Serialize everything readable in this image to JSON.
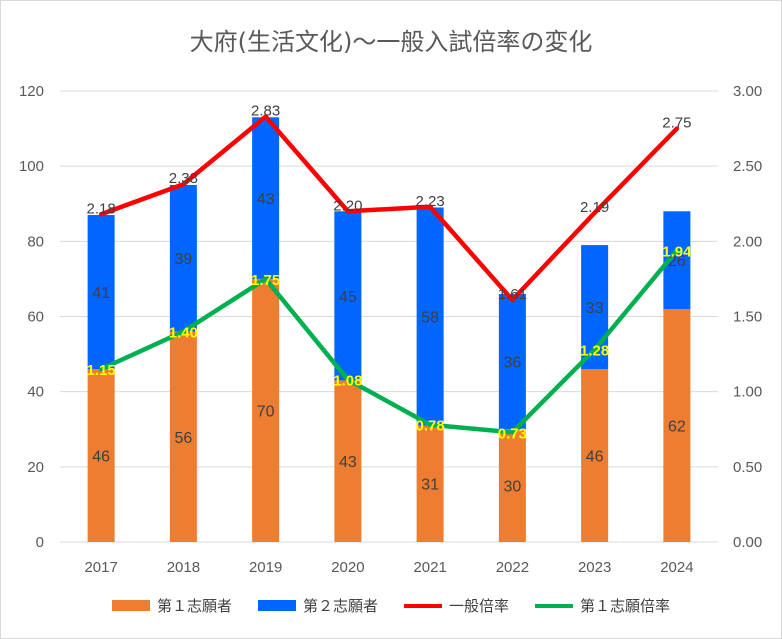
{
  "chart_data": {
    "type": "bar",
    "title": "大府(生活文化)～一般入試倍率の変化",
    "categories": [
      "2017",
      "2018",
      "2019",
      "2020",
      "2021",
      "2022",
      "2023",
      "2024"
    ],
    "left_axis": {
      "ylim": [
        0,
        120
      ],
      "ticks": [
        "0",
        "20",
        "40",
        "60",
        "80",
        "100",
        "120"
      ]
    },
    "right_axis": {
      "ylim": [
        0,
        3.0
      ],
      "ticks": [
        "0.00",
        "0.50",
        "1.00",
        "1.50",
        "2.00",
        "2.50",
        "3.00"
      ]
    },
    "stacked": true,
    "grid": true,
    "legend_position": "bottom",
    "series": [
      {
        "name": "第１志願者",
        "kind": "bar",
        "axis": "left",
        "color": "#ed7d31",
        "values": [
          46,
          56,
          70,
          43,
          31,
          30,
          46,
          62
        ],
        "labels": [
          "46",
          "56",
          "70",
          "43",
          "31",
          "30",
          "46",
          "62"
        ]
      },
      {
        "name": "第２志願者",
        "kind": "bar",
        "axis": "left",
        "color": "#0066ff",
        "values": [
          41,
          39,
          43,
          45,
          58,
          36,
          33,
          26
        ],
        "labels": [
          "41",
          "39",
          "43",
          "45",
          "58",
          "36",
          "33",
          "26"
        ]
      },
      {
        "name": "一般倍率",
        "kind": "line",
        "axis": "right",
        "color": "#ff0000",
        "values": [
          2.18,
          2.38,
          2.83,
          2.2,
          2.23,
          1.61,
          2.19,
          2.75
        ],
        "labels": [
          "2.18",
          "2.38",
          "2.83",
          "2.20",
          "2.23",
          "1.61",
          "2.19",
          "2.75"
        ]
      },
      {
        "name": "第１志願倍率",
        "kind": "line",
        "axis": "right",
        "color": "#00b050",
        "values": [
          1.15,
          1.4,
          1.75,
          1.08,
          0.78,
          0.73,
          1.28,
          1.94
        ],
        "labels": [
          "1.15",
          "1.40",
          "1.75",
          "1.08",
          "0.78",
          "0.73",
          "1.28",
          "1.94"
        ]
      }
    ]
  }
}
